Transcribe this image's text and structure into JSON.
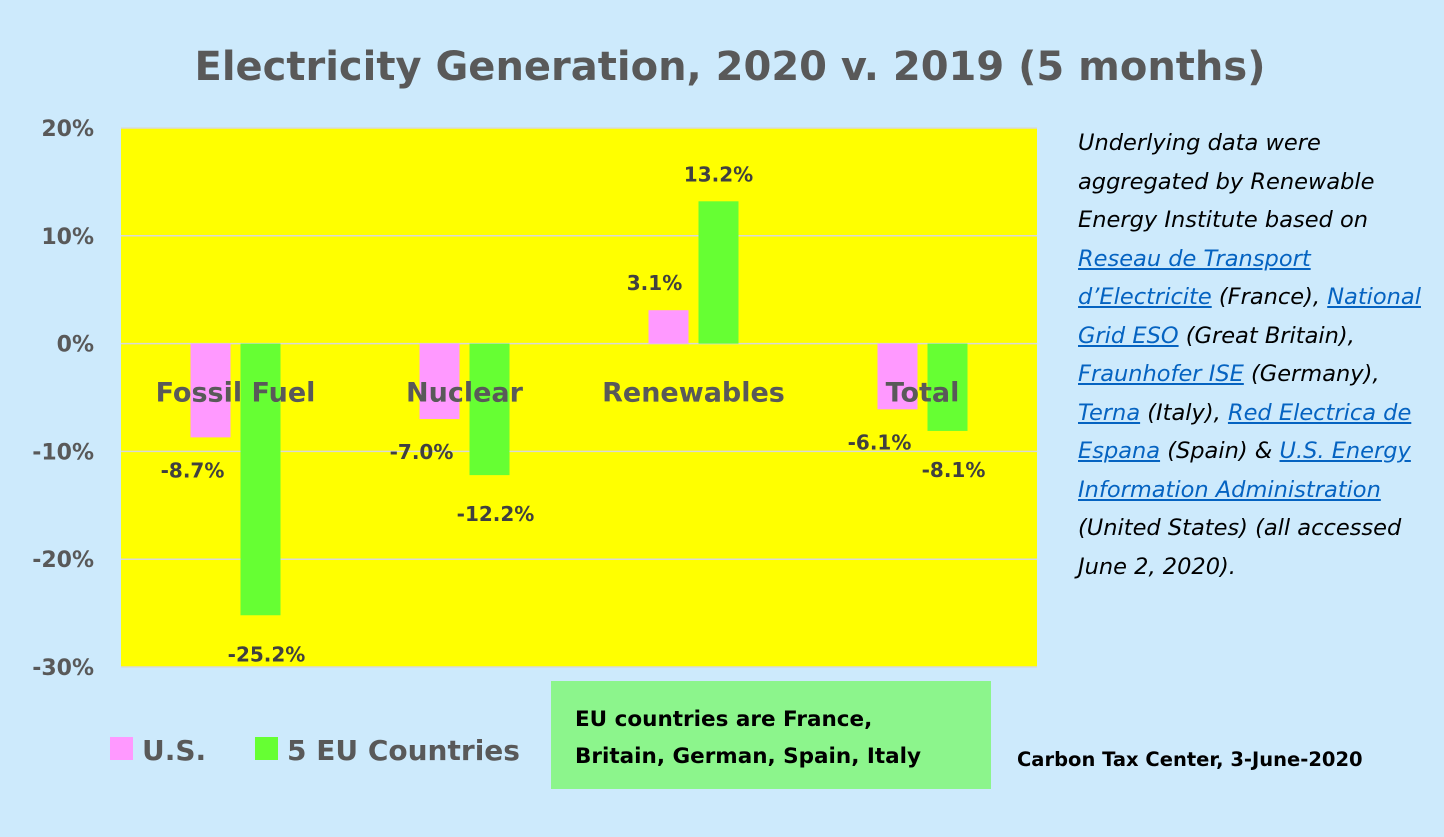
{
  "chart_data": {
    "type": "bar",
    "title": "Electricity Generation, 2020 v. 2019 (5 months)",
    "categories": [
      "Fossil Fuel",
      "Nuclear",
      "Renewables",
      "Total"
    ],
    "series": [
      {
        "name": "U.S.",
        "color": "#ff99ff",
        "values": [
          -8.7,
          -7.0,
          3.1,
          -6.1
        ],
        "labels": [
          "-8.7%",
          "-7.0%",
          "3.1%",
          "-6.1%"
        ]
      },
      {
        "name": "5 EU Countries",
        "color": "#66ff33",
        "values": [
          -25.2,
          -12.2,
          13.2,
          -8.1
        ],
        "labels": [
          "-25.2%",
          "-12.2%",
          "13.2%",
          "-8.1%"
        ]
      }
    ],
    "ylim": [
      -30,
      20
    ],
    "yticks": [
      20,
      10,
      0,
      -10,
      -20,
      -30
    ],
    "ytick_labels": [
      "20%",
      "10%",
      "0%",
      "-10%",
      "-20%",
      "-30%"
    ],
    "grid": true,
    "legend_position": "bottom-left",
    "plot_background": "#ffff00"
  },
  "note": {
    "intro": "Underlying data were aggregated by Renewable Energy Institute based on",
    "sources": [
      {
        "link": "Reseau de Transport d’Electricite",
        "after": " (France), "
      },
      {
        "link": "National Grid ESO",
        "after": " (Great Britain), "
      },
      {
        "link": "Fraunhofer ISE",
        "after": " (Germany), "
      },
      {
        "link": "Terna",
        "after": " (Italy), "
      },
      {
        "link": "Red Electrica de Espana",
        "after": " (Spain) & "
      },
      {
        "link": "U.S. Energy Information Administration",
        "after": " (United States) (all accessed June 2, 2020)."
      }
    ]
  },
  "eu_box": {
    "line1": "EU countries are France,",
    "line2": "Britain, German, Spain, Italy"
  },
  "credit": "Carbon Tax Center, 3-June-2020"
}
